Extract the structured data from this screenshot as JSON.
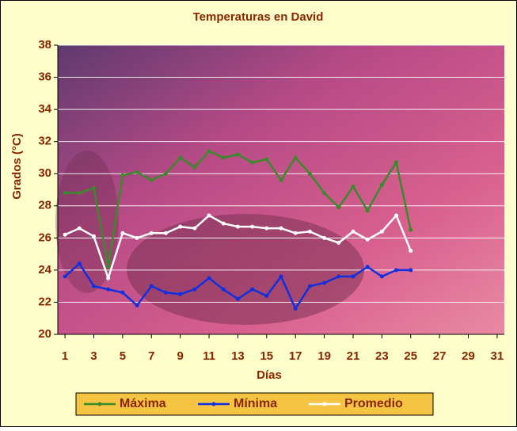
{
  "chart_data": {
    "type": "line",
    "title": "Temperaturas en David",
    "x_label": "Días",
    "y_label": "Grados (°C)",
    "x": [
      1,
      2,
      3,
      4,
      5,
      6,
      7,
      8,
      9,
      10,
      11,
      12,
      13,
      14,
      15,
      16,
      17,
      18,
      19,
      20,
      21,
      22,
      23,
      24,
      25
    ],
    "series": [
      {
        "name": "Máxima",
        "color": "#3a8a2a",
        "values": [
          28.8,
          28.8,
          29.1,
          24.2,
          29.9,
          30.1,
          29.6,
          30.0,
          31.0,
          30.4,
          31.4,
          31.0,
          31.2,
          30.7,
          30.9,
          29.6,
          31.0,
          30.0,
          28.8,
          27.9,
          29.2,
          27.7,
          29.3,
          30.7,
          26.5
        ]
      },
      {
        "name": "Mínima",
        "color": "#1030e0",
        "values": [
          23.6,
          24.4,
          23.0,
          22.8,
          22.6,
          21.8,
          23.0,
          22.6,
          22.5,
          22.8,
          23.5,
          22.8,
          22.2,
          22.8,
          22.4,
          23.6,
          21.6,
          23.0,
          23.2,
          23.6,
          23.6,
          24.2,
          23.6,
          24.0,
          24.0
        ]
      },
      {
        "name": "Promedio",
        "color": "#ffffff",
        "values": [
          26.2,
          26.6,
          26.1,
          23.5,
          26.3,
          26.0,
          26.3,
          26.3,
          26.7,
          26.6,
          27.4,
          26.9,
          26.7,
          26.7,
          26.6,
          26.6,
          26.3,
          26.4,
          26.0,
          25.7,
          26.4,
          25.9,
          26.4,
          27.4,
          25.2
        ]
      }
    ],
    "xlim": [
      0.5,
      31.5
    ],
    "xticks": [
      1,
      3,
      5,
      7,
      9,
      11,
      13,
      15,
      17,
      19,
      21,
      23,
      25,
      27,
      29,
      31
    ],
    "ylim": [
      20,
      38
    ],
    "yticks": [
      20,
      22,
      24,
      26,
      28,
      30,
      32,
      34,
      36,
      38
    ],
    "grid": true,
    "legend": "bottom"
  }
}
